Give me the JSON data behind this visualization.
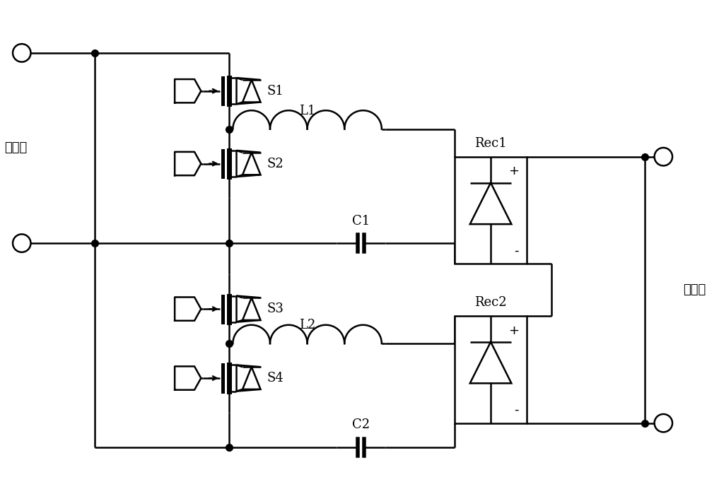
{
  "bg": "#ffffff",
  "lc": "#000000",
  "lw": 1.8,
  "fs": 13,
  "dot_ms": 7,
  "label_input": "输入端",
  "label_output": "输出端",
  "S1": "S1",
  "S2": "S2",
  "S3": "S3",
  "S4": "S4",
  "L1": "L1",
  "L2": "L2",
  "C1": "C1",
  "C2": "C2",
  "Rec1": "Rec1",
  "Rec2": "Rec2"
}
